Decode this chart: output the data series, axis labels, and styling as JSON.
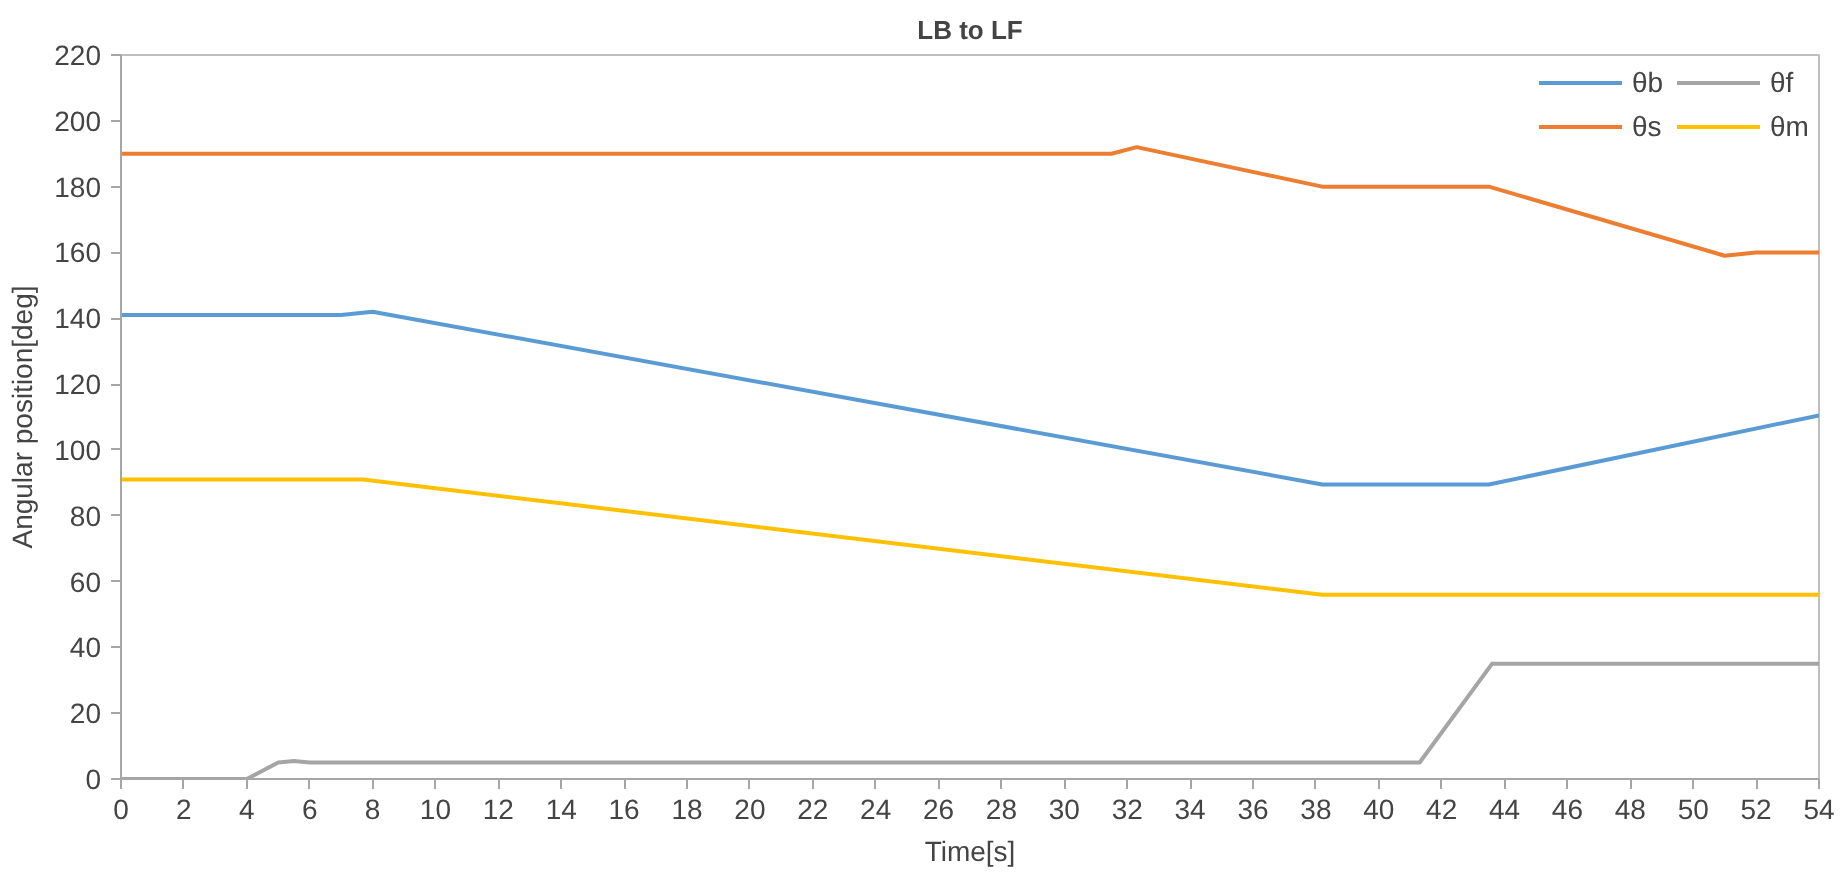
{
  "chart_data": {
    "type": "line",
    "title": "LB to LF",
    "xlabel": "Time[s]",
    "ylabel": "Angular position[deg]",
    "xlim": [
      0,
      54
    ],
    "xticks": [
      0,
      2,
      4,
      6,
      8,
      10,
      12,
      14,
      16,
      18,
      20,
      22,
      24,
      26,
      28,
      30,
      32,
      34,
      36,
      38,
      40,
      42,
      44,
      46,
      48,
      50,
      52,
      54
    ],
    "ylim": [
      0,
      220
    ],
    "yticks": [
      0,
      20,
      40,
      60,
      80,
      100,
      120,
      140,
      160,
      180,
      200,
      220
    ],
    "grid": false,
    "legend": "top right",
    "marker": "none",
    "line_style": "solid",
    "series": [
      {
        "name": "θb",
        "color": "#5b9bd5",
        "x": [
          0,
          7,
          8,
          38.2,
          43.5,
          54
        ],
        "values": [
          141,
          141,
          142,
          89.5,
          89.5,
          110.5
        ]
      },
      {
        "name": "θs",
        "color": "#ed7d31",
        "x": [
          0,
          31.5,
          32.3,
          38.2,
          43.5,
          51,
          52,
          54
        ],
        "values": [
          190,
          190,
          192,
          180,
          180,
          159,
          160,
          160
        ]
      },
      {
        "name": "θf",
        "color": "#a5a5a5",
        "x": [
          0,
          4,
          5,
          5.5,
          6,
          41.3,
          43.6,
          54
        ],
        "values": [
          0,
          0,
          5,
          5.5,
          5,
          5,
          35,
          35
        ]
      },
      {
        "name": "θm",
        "color": "#ffc000",
        "x": [
          0,
          7.7,
          38.2,
          54
        ],
        "values": [
          91,
          91,
          56,
          56
        ]
      }
    ]
  }
}
